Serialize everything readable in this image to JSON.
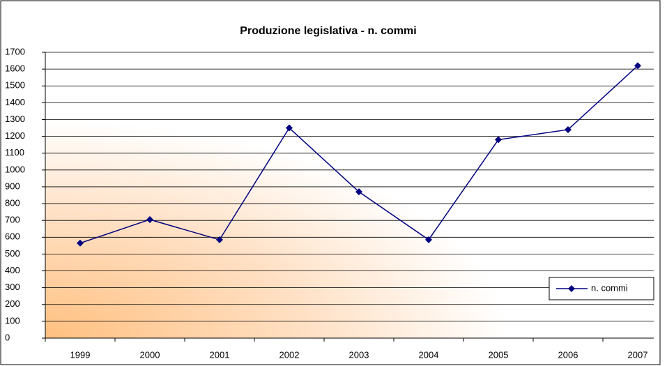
{
  "chart_data": {
    "type": "line",
    "title": "Produzione legislativa - n. commi",
    "categories": [
      "1999",
      "2000",
      "2001",
      "2002",
      "2003",
      "2004",
      "2005",
      "2006",
      "2007"
    ],
    "series": [
      {
        "name": "n. commi",
        "color": "#000080",
        "values": [
          565,
          705,
          585,
          1250,
          870,
          585,
          1180,
          1240,
          1620
        ]
      }
    ],
    "ylim": [
      0,
      1700
    ],
    "yticks": [
      0,
      100,
      200,
      300,
      400,
      500,
      600,
      700,
      800,
      900,
      1000,
      1100,
      1200,
      1300,
      1400,
      1500,
      1600,
      1700
    ],
    "grid": true,
    "legend": "lower right"
  }
}
